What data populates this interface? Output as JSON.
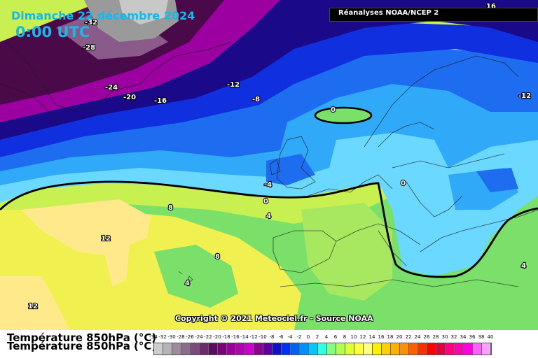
{
  "header": {
    "date": "Dimanche 22 décembre 2024",
    "time": "0:00 UTC",
    "source": "Réanalyses NOAA/NCEP 2"
  },
  "footer": {
    "variable_title": "Température 850hPa (°C)",
    "copyright": "Copyright © 2021 Meteociel.fr - Source NOAA"
  },
  "scale": {
    "ticks": [
      "-34",
      "-32",
      "-30",
      "-28",
      "-26",
      "-24",
      "-22",
      "-20",
      "-18",
      "-16",
      "-14",
      "-12",
      "-10",
      "-8",
      "-6",
      "-4",
      "-2",
      "0",
      "2",
      "4",
      "6",
      "8",
      "10",
      "12",
      "14",
      "16",
      "18",
      "20",
      "22",
      "24",
      "26",
      "28",
      "30",
      "32",
      "34",
      "36",
      "38",
      "40"
    ],
    "colors": [
      "#cccccc",
      "#b4b4b4",
      "#9c8c9c",
      "#8c6c8c",
      "#7c4c7c",
      "#6c2c6c",
      "#5c0c5c",
      "#7c007c",
      "#9c009c",
      "#b400b4",
      "#cc00cc",
      "#8c008c",
      "#5c00a0",
      "#1010c8",
      "#0030f0",
      "#0060f8",
      "#0090ff",
      "#00c8ff",
      "#30ffe0",
      "#80ff80",
      "#b4ff50",
      "#e0ff30",
      "#ffff40",
      "#ffff80",
      "#fff000",
      "#ffd000",
      "#ffb000",
      "#ff9000",
      "#ff6000",
      "#ff3000",
      "#ff0000",
      "#e00040",
      "#ff0080",
      "#ff00b0",
      "#ff00e0",
      "#ff60ff",
      "#ffa0ff"
    ]
  },
  "map": {
    "legend_icons": [
      "isotherm-line"
    ],
    "colors": {
      "cold_extreme": "#c8c8c8",
      "purple_dark": "#4a0a4a",
      "magenta": "#9c00a0",
      "navy": "#1a0a8a",
      "blue": "#1030e0",
      "blue_mid": "#1e6cf0",
      "cyan": "#30aaf8",
      "cyan_light": "#6ad8ff",
      "green": "#7ae06a",
      "yellow_green": "#c8f050",
      "yellow": "#f0f050",
      "pale_yellow": "#ffe98a"
    },
    "isotherm_labels": [
      "-32",
      "-28",
      "-24",
      "-20",
      "-16",
      "-12",
      "-8",
      "-12",
      "0",
      "-4",
      "0",
      "4",
      "8",
      "12",
      "8",
      "4",
      "12",
      "0",
      "4",
      "16"
    ]
  }
}
